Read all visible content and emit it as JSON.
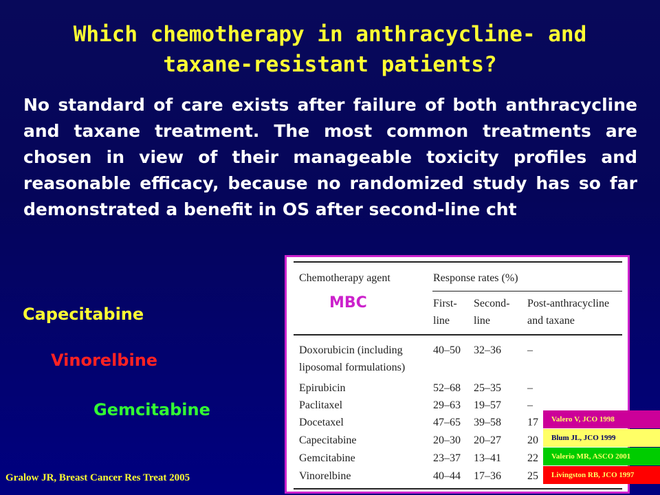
{
  "title": {
    "line1": "Which chemotherapy in anthracycline- and",
    "line2": "taxane-resistant patients?"
  },
  "body_text": "No standard of care exists after failure of both anthracycline and taxane treatment. The most common treatments are chosen in view of their manageable toxicity profiles and reasonable efficacy, because no randomized study has so far demonstrated a benefit in OS after second-line cht",
  "drugs": [
    {
      "label": "Capecitabine",
      "color": "#ffff33"
    },
    {
      "label": "Vinorelbine",
      "color": "#ff2222"
    },
    {
      "label": "Gemcitabine",
      "color": "#33ff33"
    }
  ],
  "citation": "Gralow JR, Breast Cancer Res Treat 2005",
  "table": {
    "overlay_label": "MBC",
    "header": {
      "agent": "Chemotherapy agent",
      "response": "Response rates (%)",
      "first": [
        "First-",
        "line"
      ],
      "second": [
        "Second-",
        "line"
      ],
      "post": [
        "Post-anthracycline",
        "and taxane"
      ]
    },
    "rows": [
      {
        "agent": "Doxorubicin (including",
        "agent2": "liposomal formulations)",
        "first": "40–50",
        "second": "32–36",
        "post": "–"
      },
      {
        "agent": "Epirubicin",
        "first": "52–68",
        "second": "25–35",
        "post": "–"
      },
      {
        "agent": "Paclitaxel",
        "first": "29–63",
        "second": "19–57",
        "post": "–"
      },
      {
        "agent": "Docetaxel",
        "first": "47–65",
        "second": "39–58",
        "post": "17"
      },
      {
        "agent": "Capecitabine",
        "first": "20–30",
        "second": "20–27",
        "post": "20"
      },
      {
        "agent": "Gemcitabine",
        "first": "23–37",
        "second": "13–41",
        "post": "22"
      },
      {
        "agent": "Vinorelbine",
        "first": "40–44",
        "second": "17–36",
        "post": "25"
      }
    ]
  },
  "references": [
    {
      "label": "Valero V, JCO 1998",
      "bg": "#cc0099",
      "fg": "#ffff66"
    },
    {
      "label": "Blum JL, JCO 1999",
      "bg": "#ffff66",
      "fg": "#000066"
    },
    {
      "label": "Valerio MR, ASCO 2001",
      "bg": "#00cc00",
      "fg": "#ffff66"
    },
    {
      "label": "Livingston RB, JCO 1997",
      "bg": "#ff0000",
      "fg": "#ffff66"
    }
  ]
}
